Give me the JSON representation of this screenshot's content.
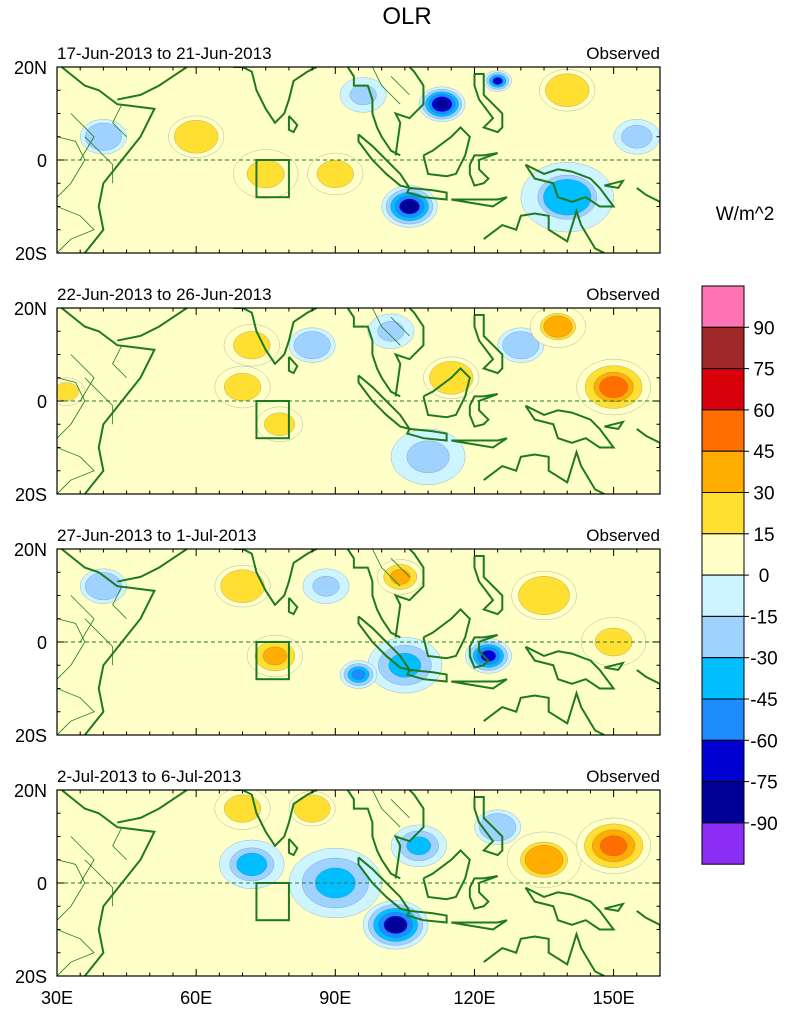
{
  "chart_data": {
    "type": "heatmap",
    "title": "OLR",
    "units_label": "W/m^2",
    "x_ticks": [
      "30E",
      "60E",
      "90E",
      "120E",
      "150E"
    ],
    "x_tick_values": [
      30,
      60,
      90,
      120,
      150
    ],
    "xlim": [
      30,
      160
    ],
    "y_ticks": [
      "20N",
      "0",
      "20S"
    ],
    "y_tick_values": [
      20,
      0,
      -20
    ],
    "ylim": [
      -20,
      20
    ],
    "panels": [
      {
        "period": "17-Jun-2013 to 21-Jun-2013",
        "source": "Observed",
        "blobs": [
          {
            "lon": 113,
            "lat": 12,
            "r": 5,
            "v": -90
          },
          {
            "lon": 106,
            "lat": -10,
            "r": 6,
            "v": -80
          },
          {
            "lon": 125,
            "lat": 17,
            "r": 3,
            "v": -65
          },
          {
            "lon": 96,
            "lat": 14,
            "r": 5,
            "v": -30
          },
          {
            "lon": 140,
            "lat": -8,
            "r": 10,
            "v": -35
          },
          {
            "lon": 75,
            "lat": -3,
            "r": 7,
            "v": 30
          },
          {
            "lon": 90,
            "lat": -3,
            "r": 6,
            "v": 25
          },
          {
            "lon": 60,
            "lat": 5,
            "r": 6,
            "v": 20
          },
          {
            "lon": 140,
            "lat": 15,
            "r": 6,
            "v": 20
          },
          {
            "lon": 40,
            "lat": 5,
            "r": 5,
            "v": -20
          },
          {
            "lon": 155,
            "lat": 5,
            "r": 5,
            "v": -25
          }
        ]
      },
      {
        "period": "22-Jun-2013 to 26-Jun-2013",
        "source": "Observed",
        "blobs": [
          {
            "lon": 150,
            "lat": 3,
            "r": 8,
            "v": 55
          },
          {
            "lon": 138,
            "lat": 16,
            "r": 6,
            "v": 35
          },
          {
            "lon": 72,
            "lat": 12,
            "r": 6,
            "v": 25
          },
          {
            "lon": 70,
            "lat": 3,
            "r": 6,
            "v": 25
          },
          {
            "lon": 78,
            "lat": -5,
            "r": 5,
            "v": 25
          },
          {
            "lon": 115,
            "lat": 5,
            "r": 6,
            "v": 20
          },
          {
            "lon": 102,
            "lat": 15,
            "r": 5,
            "v": -30
          },
          {
            "lon": 110,
            "lat": -12,
            "r": 8,
            "v": -30
          },
          {
            "lon": 85,
            "lat": 12,
            "r": 5,
            "v": -20
          },
          {
            "lon": 130,
            "lat": 12,
            "r": 5,
            "v": -20
          },
          {
            "lon": 32,
            "lat": 2,
            "r": 4,
            "v": 25
          }
        ]
      },
      {
        "period": "27-Jun-2013 to 1-Jul-2013",
        "source": "Observed",
        "blobs": [
          {
            "lon": 123,
            "lat": -3,
            "r": 5,
            "v": -75
          },
          {
            "lon": 105,
            "lat": -5,
            "r": 8,
            "v": -45
          },
          {
            "lon": 95,
            "lat": -7,
            "r": 4,
            "v": -60
          },
          {
            "lon": 104,
            "lat": 14,
            "r": 5,
            "v": 45
          },
          {
            "lon": 77,
            "lat": -3,
            "r": 6,
            "v": 45
          },
          {
            "lon": 150,
            "lat": 0,
            "r": 7,
            "v": 30
          },
          {
            "lon": 70,
            "lat": 12,
            "r": 6,
            "v": 20
          },
          {
            "lon": 135,
            "lat": 10,
            "r": 7,
            "v": 20
          },
          {
            "lon": 88,
            "lat": 12,
            "r": 5,
            "v": -30
          },
          {
            "lon": 40,
            "lat": 12,
            "r": 5,
            "v": -20
          }
        ]
      },
      {
        "period": "2-Jul-2013 to 6-Jul-2013",
        "source": "Observed",
        "blobs": [
          {
            "lon": 103,
            "lat": -9,
            "r": 7,
            "v": -80
          },
          {
            "lon": 90,
            "lat": 0,
            "r": 10,
            "v": -45
          },
          {
            "lon": 72,
            "lat": 4,
            "r": 7,
            "v": -40
          },
          {
            "lon": 108,
            "lat": 8,
            "r": 6,
            "v": -45
          },
          {
            "lon": 150,
            "lat": 8,
            "r": 8,
            "v": 60
          },
          {
            "lon": 135,
            "lat": 5,
            "r": 8,
            "v": 35
          },
          {
            "lon": 70,
            "lat": 16,
            "r": 6,
            "v": 25
          },
          {
            "lon": 85,
            "lat": 16,
            "r": 5,
            "v": 20
          },
          {
            "lon": 125,
            "lat": 12,
            "r": 5,
            "v": -20
          }
        ]
      }
    ],
    "colorbar": {
      "labels": [
        "90",
        "75",
        "60",
        "45",
        "30",
        "15",
        "0",
        "-15",
        "-30",
        "-45",
        "-60",
        "-75",
        "-90"
      ],
      "colors": [
        "#ff73b5",
        "#a02828",
        "#d7000b",
        "#ff6e00",
        "#ffad00",
        "#ffe032",
        "#ffffc8",
        "#cdf5ff",
        "#a0d2ff",
        "#00beff",
        "#1e8cff",
        "#0000d2",
        "#000096",
        "#8c2df5"
      ]
    },
    "box_region": {
      "lon": [
        73,
        80
      ],
      "lat": [
        -8,
        0
      ]
    }
  }
}
